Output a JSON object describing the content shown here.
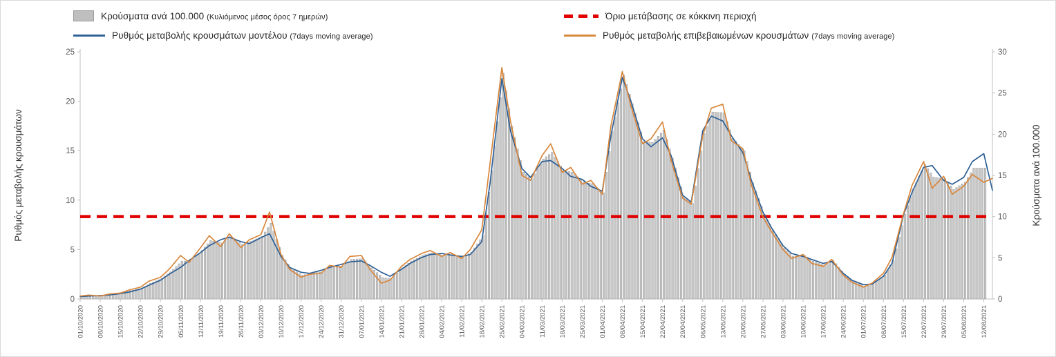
{
  "legend": {
    "items": [
      {
        "swatch": "bar",
        "color": "#bfbfbf",
        "label": "Κρούσματα ανά 100.000",
        "suffix": "(Κυλιόμενος μέσος όρος 7 ημερών)"
      },
      {
        "swatch": "dash",
        "color": "#e00000",
        "label": "Όριο μετάβασης σε κόκκινη περιοχή",
        "suffix": ""
      },
      {
        "swatch": "line",
        "color": "#2e6096",
        "label": "Ρυθμός μεταβολής κρουσμάτων μοντέλου",
        "suffix": "(7days moving average)"
      },
      {
        "swatch": "line",
        "color": "#d9873c",
        "label": "Ρυθμός μεταβολής επιβεβαιωμένων κρουσμάτων",
        "suffix": "(7days moving average)"
      }
    ]
  },
  "chart_data": {
    "type": "bar",
    "title": "",
    "left_axis": {
      "label": "Ρυθμός μεταβολής κρουσμάτων",
      "min": 0,
      "max": 25,
      "ticks": [
        0,
        5,
        10,
        15,
        20,
        25
      ]
    },
    "right_axis": {
      "label": "Κρούσματα ανά 100.000",
      "min": 0,
      "max": 30,
      "ticks": [
        0,
        5,
        10,
        15,
        20,
        25,
        30
      ]
    },
    "x_tick_labels": [
      "01/10/2020",
      "08/10/2020",
      "15/10/2020",
      "22/10/2020",
      "29/10/2020",
      "05/11/2020",
      "12/11/2020",
      "19/11/2020",
      "26/11/2020",
      "03/12/2020",
      "10/12/2020",
      "17/12/2020",
      "24/12/2020",
      "31/12/2020",
      "07/01/2021",
      "14/01/2021",
      "21/01/2021",
      "28/01/2021",
      "04/02/2021",
      "11/02/2021",
      "18/02/2021",
      "25/02/2021",
      "04/03/2021",
      "11/03/2021",
      "18/03/2021",
      "25/03/2021",
      "01/04/2021",
      "08/04/2021",
      "15/04/2021",
      "22/04/2021",
      "29/04/2021",
      "06/05/2021",
      "13/05/2021",
      "20/05/2021",
      "27/05/2021",
      "03/06/2021",
      "10/06/2021",
      "17/06/2021",
      "24/06/2021",
      "01/07/2021",
      "08/07/2021",
      "15/07/2021",
      "22/07/2021",
      "29/07/2021",
      "05/08/2021",
      "12/08/2021"
    ],
    "x_days": [
      0,
      3,
      7,
      10,
      14,
      17,
      21,
      24,
      28,
      31,
      35,
      38,
      42,
      45,
      49,
      52,
      56,
      59,
      63,
      66,
      70,
      73,
      77,
      80,
      84,
      87,
      91,
      94,
      98,
      101,
      105,
      108,
      112,
      115,
      119,
      122,
      126,
      129,
      133,
      136,
      140,
      143,
      147,
      150,
      154,
      157,
      161,
      164,
      168,
      171,
      175,
      178,
      182,
      185,
      189,
      192,
      196,
      199,
      203,
      206,
      210,
      213,
      217,
      220,
      224,
      227,
      231,
      234,
      238,
      241,
      245,
      248,
      252,
      255,
      259,
      262,
      266,
      269,
      273,
      276,
      280,
      283,
      287,
      290,
      294,
      297,
      301,
      304,
      308,
      311,
      315,
      318
    ],
    "series": [
      {
        "name": "Κρούσματα ανά 100.000 (Κυλιόμενος μέσος όρος 7 ημερών)",
        "type": "bar",
        "axis": "right",
        "color": "#c7c7c7",
        "values": [
          0.3,
          0.4,
          0.4,
          0.5,
          0.7,
          1.0,
          1.3,
          1.9,
          2.5,
          3.3,
          4.6,
          4.6,
          5.9,
          7.1,
          6.8,
          7.7,
          6.6,
          7.0,
          7.6,
          9.2,
          5.3,
          3.7,
          2.9,
          3.1,
          3.3,
          4.0,
          4.0,
          4.8,
          4.9,
          3.8,
          2.6,
          2.5,
          3.8,
          4.6,
          5.3,
          5.6,
          5.3,
          5.5,
          5.0,
          5.7,
          7.7,
          15.6,
          27.4,
          21.0,
          15.4,
          14.6,
          17.0,
          17.8,
          15.6,
          15.4,
          14.2,
          14.0,
          12.9,
          20.4,
          27.2,
          23.7,
          19.1,
          19.0,
          20.5,
          17.1,
          12.4,
          11.6,
          20.1,
          22.7,
          22.6,
          19.5,
          18.0,
          14.1,
          10.3,
          8.4,
          6.2,
          5.2,
          5.3,
          4.6,
          4.1,
          4.7,
          3.0,
          2.2,
          1.6,
          1.9,
          2.9,
          4.7,
          10.3,
          13.4,
          16.3,
          14.8,
          14.6,
          13.3,
          14.2,
          15.9,
          15.9,
          13.9
        ]
      },
      {
        "name": "Ρυθμός μεταβολής κρουσμάτων μοντέλου (7days moving average)",
        "type": "line",
        "axis": "left",
        "color": "#2e6096",
        "values": [
          0.25,
          0.3,
          0.35,
          0.4,
          0.55,
          0.7,
          1.0,
          1.4,
          1.9,
          2.5,
          3.2,
          3.9,
          4.7,
          5.4,
          6.0,
          6.25,
          5.8,
          5.6,
          6.2,
          6.6,
          4.3,
          3.2,
          2.7,
          2.6,
          2.9,
          3.2,
          3.5,
          3.75,
          3.85,
          3.4,
          2.7,
          2.3,
          3.0,
          3.6,
          4.2,
          4.5,
          4.6,
          4.45,
          4.3,
          4.5,
          5.8,
          12.0,
          22.3,
          17.0,
          13.2,
          12.3,
          13.9,
          14.0,
          13.2,
          12.4,
          12.1,
          11.4,
          10.9,
          16.5,
          22.4,
          20.0,
          16.2,
          15.4,
          16.3,
          14.5,
          10.5,
          9.8,
          17.0,
          18.5,
          18.0,
          16.5,
          14.8,
          12.0,
          8.8,
          7.2,
          5.4,
          4.6,
          4.3,
          4.0,
          3.6,
          3.8,
          2.6,
          1.9,
          1.45,
          1.5,
          2.3,
          3.6,
          8.5,
          10.8,
          13.3,
          13.5,
          12.0,
          11.6,
          12.3,
          13.9,
          14.7,
          11.0
        ]
      },
      {
        "name": "Ρυθμός μεταβολής επιβεβαιωμένων κρουσμάτων (7days moving average)",
        "type": "line",
        "axis": "left",
        "color": "#d9873c",
        "values": [
          0.3,
          0.4,
          0.3,
          0.5,
          0.6,
          0.9,
          1.2,
          1.8,
          2.2,
          3.0,
          4.4,
          3.7,
          5.2,
          6.4,
          5.3,
          6.6,
          5.2,
          6.0,
          6.5,
          8.8,
          4.5,
          3.0,
          2.2,
          2.5,
          2.6,
          3.4,
          3.2,
          4.3,
          4.4,
          3.0,
          1.6,
          1.9,
          3.3,
          4.0,
          4.6,
          4.9,
          4.3,
          4.7,
          4.1,
          5.0,
          7.0,
          14.0,
          23.4,
          18.0,
          12.5,
          12.0,
          14.5,
          15.7,
          12.8,
          13.3,
          11.6,
          12.0,
          10.6,
          17.5,
          23.0,
          19.5,
          15.7,
          16.2,
          17.9,
          14.0,
          10.2,
          9.6,
          16.5,
          19.3,
          19.7,
          16.0,
          15.2,
          11.5,
          8.3,
          6.8,
          5.0,
          4.1,
          4.5,
          3.6,
          3.3,
          4.0,
          2.4,
          1.7,
          1.2,
          1.6,
          2.6,
          4.2,
          8.6,
          11.5,
          13.9,
          11.2,
          12.4,
          10.6,
          11.4,
          12.6,
          11.8,
          12.2
        ]
      },
      {
        "name": "Όριο μετάβασης σε κόκκινη περιοχή",
        "type": "threshold",
        "axis": "right",
        "color": "#e00000",
        "value": 10
      }
    ]
  }
}
